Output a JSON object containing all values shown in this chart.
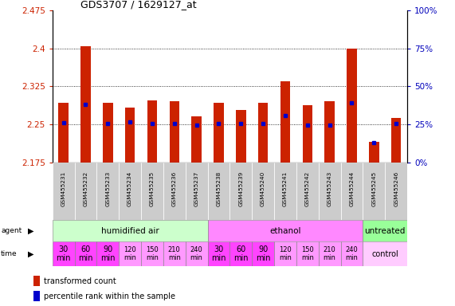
{
  "title": "GDS3707 / 1629127_at",
  "samples": [
    "GSM455231",
    "GSM455232",
    "GSM455233",
    "GSM455234",
    "GSM455235",
    "GSM455236",
    "GSM455237",
    "GSM455238",
    "GSM455239",
    "GSM455240",
    "GSM455241",
    "GSM455242",
    "GSM455243",
    "GSM455244",
    "GSM455245",
    "GSM455246"
  ],
  "red_values": [
    2.293,
    2.404,
    2.292,
    2.283,
    2.298,
    2.296,
    2.265,
    2.292,
    2.279,
    2.293,
    2.336,
    2.288,
    2.295,
    2.4,
    2.215,
    2.263
  ],
  "blue_values": [
    2.253,
    2.29,
    2.252,
    2.254,
    2.252,
    2.251,
    2.248,
    2.251,
    2.252,
    2.251,
    2.268,
    2.248,
    2.249,
    2.293,
    2.213,
    2.251
  ],
  "ylim": [
    2.175,
    2.475
  ],
  "yticks_left": [
    2.175,
    2.25,
    2.325,
    2.4,
    2.475
  ],
  "yticks_right": [
    0,
    25,
    50,
    75,
    100
  ],
  "yticks_right_vals": [
    2.175,
    2.25,
    2.325,
    2.4,
    2.475
  ],
  "agent_groups": [
    {
      "label": "humidified air",
      "start": 0,
      "end": 7,
      "color": "#ccffcc"
    },
    {
      "label": "ethanol",
      "start": 7,
      "end": 14,
      "color": "#ff88ff"
    },
    {
      "label": "untreated",
      "start": 14,
      "end": 16,
      "color": "#99ff99"
    }
  ],
  "time_labels_14": [
    "30\nmin",
    "60\nmin",
    "90\nmin",
    "120\nmin",
    "150\nmin",
    "210\nmin",
    "240\nmin",
    "30\nmin",
    "60\nmin",
    "90\nmin",
    "120\nmin",
    "150\nmin",
    "210\nmin",
    "240\nmin"
  ],
  "time_colors_14": [
    "#ff44ff",
    "#ff44ff",
    "#ff44ff",
    "#ff99ff",
    "#ff99ff",
    "#ff99ff",
    "#ff99ff",
    "#ff44ff",
    "#ff44ff",
    "#ff44ff",
    "#ff99ff",
    "#ff99ff",
    "#ff99ff",
    "#ff99ff"
  ],
  "time_fontsizes": [
    7,
    7,
    7,
    6,
    6,
    6,
    6,
    7,
    7,
    7,
    6,
    6,
    6,
    6
  ],
  "control_color": "#ffccff",
  "bar_color": "#cc2200",
  "dot_color": "#0000cc",
  "bg_color": "#ffffff",
  "bar_bottom": 2.175,
  "label_color_left": "#cc2200",
  "label_color_right": "#0000bb",
  "sample_box_color": "#cccccc",
  "grid_dotted_vals": [
    2.25,
    2.325,
    2.4
  ]
}
